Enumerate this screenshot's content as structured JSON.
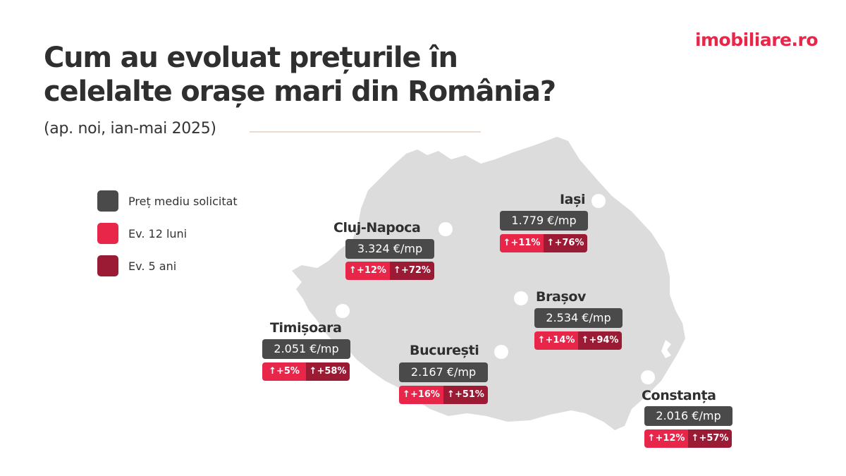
{
  "brand": {
    "logo_text": "imobiliare.ro",
    "colors": {
      "accent": "#e8264a",
      "dark_red": "#9a1b33",
      "price_box": "#4a4a4a",
      "map": "#dcdcdc"
    }
  },
  "header": {
    "title_line1": "Cum au evoluat prețurile în",
    "title_line2": "celelalte orașe mari din România?",
    "subtitle": "(ap. noi, ian-mai 2025)"
  },
  "legend": {
    "items": [
      {
        "label": "Preț mediu solicitat",
        "color": "#4a4a4a"
      },
      {
        "label": "Ev. 12 luni",
        "color": "#e8264a"
      },
      {
        "label": "Ev. 5 ani",
        "color": "#9a1b33"
      }
    ]
  },
  "cities": {
    "iasi": {
      "name": "Iași",
      "price": "1.779 €/mp",
      "change_12m": "↑+11%",
      "change_5y": "↑+76%"
    },
    "cluj": {
      "name": "Cluj-Napoca",
      "price": "3.324 €/mp",
      "change_12m": "↑+12%",
      "change_5y": "↑+72%"
    },
    "brasov": {
      "name": "Brașov",
      "price": "2.534 €/mp",
      "change_12m": "↑+14%",
      "change_5y": "↑+94%"
    },
    "timisoara": {
      "name": "Timișoara",
      "price": "2.051 €/mp",
      "change_12m": "↑+5%",
      "change_5y": "↑+58%"
    },
    "bucuresti": {
      "name": "București",
      "price": "2.167 €/mp",
      "change_12m": "↑+16%",
      "change_5y": "↑+51%"
    },
    "constanta": {
      "name": "Constanța",
      "price": "2.016 €/mp",
      "change_12m": "↑+12%",
      "change_5y": "↑+57%"
    }
  }
}
